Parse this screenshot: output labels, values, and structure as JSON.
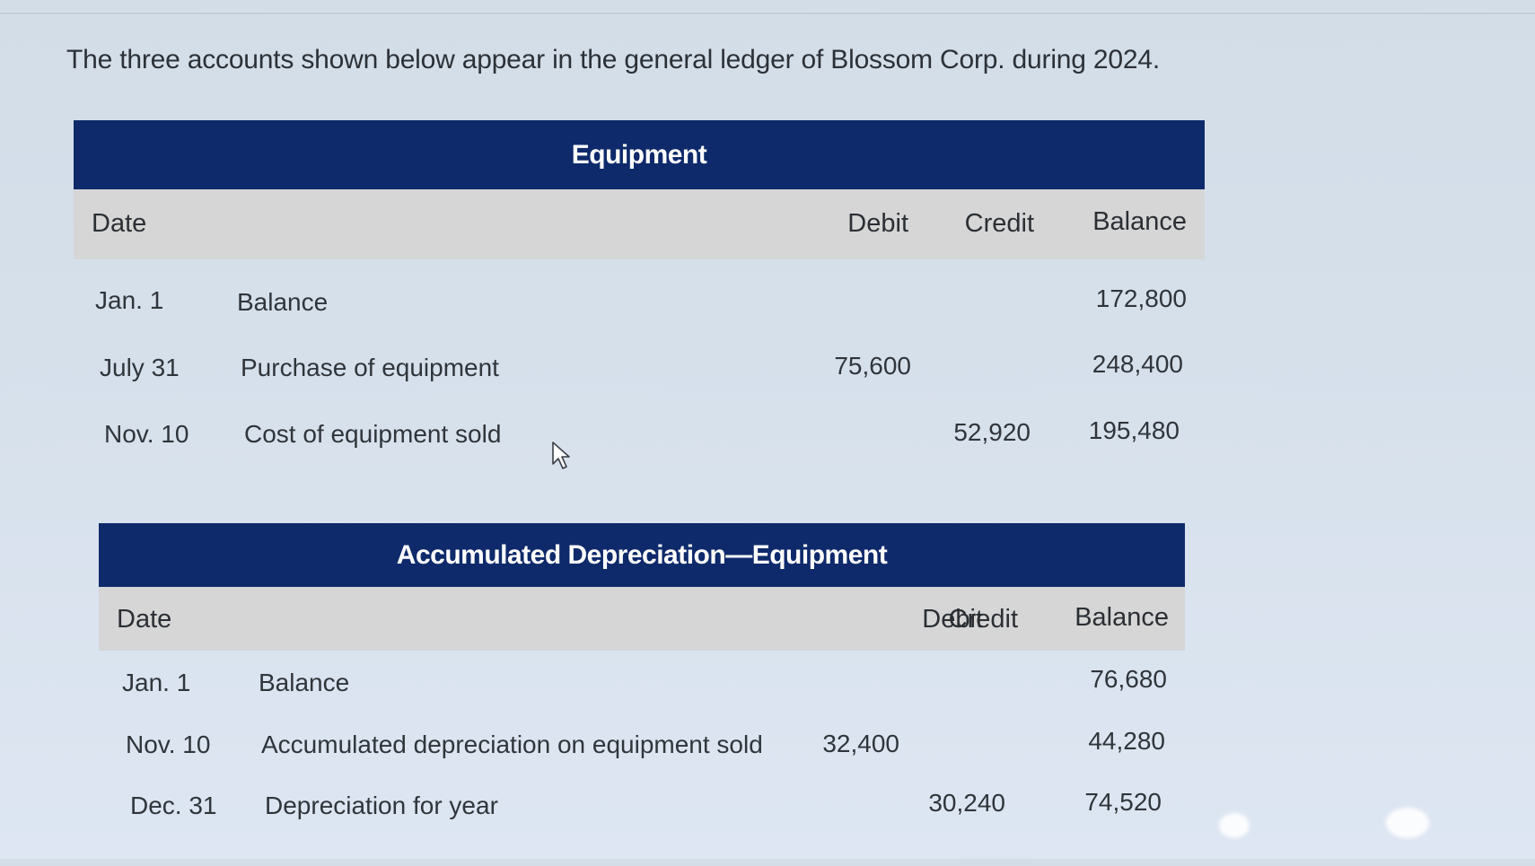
{
  "intro_text": "The three accounts shown below appear in the general ledger of Blossom Corp. during 2024.",
  "ledgers": [
    {
      "title": "Equipment",
      "headers": {
        "date": "Date",
        "debit": "Debit",
        "credit": "Credit",
        "balance": "Balance"
      },
      "rows": [
        {
          "date": "Jan. 1",
          "description": "Balance",
          "debit": "",
          "credit": "",
          "balance": "172,800"
        },
        {
          "date": "July 31",
          "description": "Purchase of equipment",
          "debit": "75,600",
          "credit": "",
          "balance": "248,400"
        },
        {
          "date": "Nov. 10",
          "description": "Cost of equipment sold",
          "debit": "",
          "credit": "52,920",
          "balance": "195,480"
        }
      ]
    },
    {
      "title": "Accumulated Depreciation—Equipment",
      "headers": {
        "date": "Date",
        "debit": "Debit",
        "credit": "Credit",
        "balance": "Balance"
      },
      "rows": [
        {
          "date": "Jan. 1",
          "description": "Balance",
          "debit": "",
          "credit": "",
          "balance": "76,680"
        },
        {
          "date": "Nov. 10",
          "description": "Accumulated depreciation on equipment sold",
          "debit": "32,400",
          "credit": "",
          "balance": "44,280"
        },
        {
          "date": "Dec. 31",
          "description": "Depreciation for year",
          "debit": "",
          "credit": "30,240",
          "balance": "74,520"
        }
      ]
    }
  ],
  "colors": {
    "title_bar": "#0e2a6b",
    "header_row": "#d6d6d6",
    "background": "#d6e0eb"
  }
}
